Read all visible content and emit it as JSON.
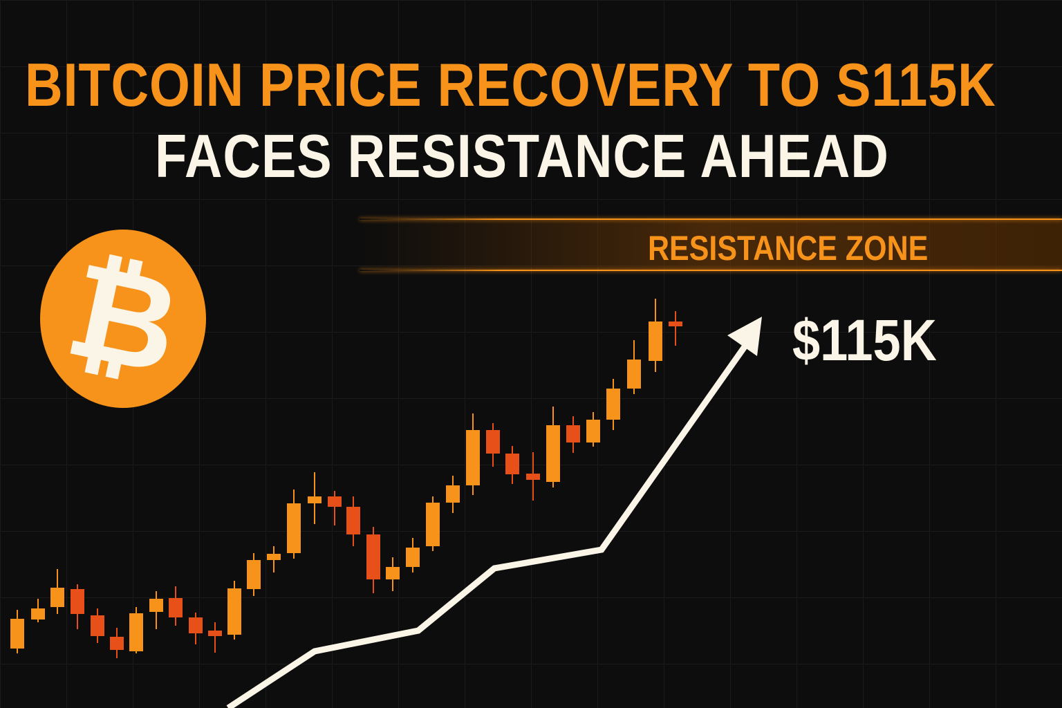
{
  "headline": {
    "line1": "BITCOIN PRICE RECOVERY TO S115K",
    "line2": "FACES RESISTANCE AHEAD"
  },
  "resistance_zone": {
    "label": "RESISTANCE ZONE"
  },
  "logo": {
    "symbol": "₿",
    "name": "bitcoin-logo"
  },
  "price_target": "$115K",
  "colors": {
    "background": "#0d0d0d",
    "accent": "#f7931a",
    "bearish": "#e8501a",
    "text": "#fbf5e8"
  }
}
